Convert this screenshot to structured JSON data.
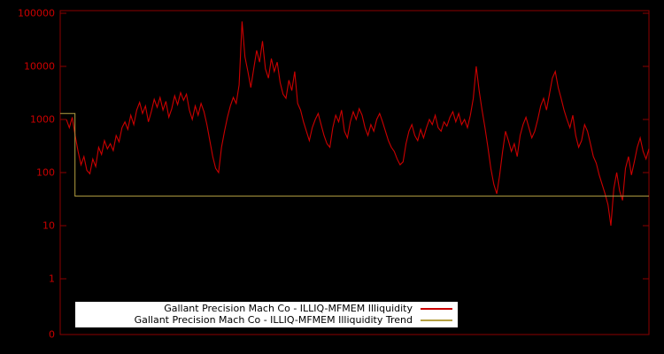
{
  "colors": {
    "background": "#000000",
    "axis": "#8b0000",
    "tick_text": "#cc0000",
    "series_red": "#cc0000",
    "series_trend": "#b5a042",
    "legend_background": "#ffffff",
    "legend_text": "#000000"
  },
  "chart_data": {
    "type": "line",
    "title": "",
    "xlabel": "",
    "ylabel": "",
    "yscale": "log",
    "ylim": [
      1,
      100000
    ],
    "grid": false,
    "legend_position": "bottom-center",
    "ytick_labels": [
      "100000",
      "10000",
      "1000",
      "100",
      "10",
      "1",
      "0"
    ],
    "series": [
      {
        "name": "Gallant Precision Mach Co - ILLIQ-MFMEM Illiquidity",
        "color": "#cc0000",
        "values": [
          1000,
          700,
          1100,
          500,
          250,
          140,
          200,
          110,
          95,
          180,
          130,
          300,
          220,
          400,
          280,
          350,
          260,
          500,
          380,
          700,
          900,
          650,
          1200,
          800,
          1500,
          2100,
          1300,
          1800,
          900,
          1400,
          2400,
          1700,
          2600,
          1500,
          2200,
          1100,
          1600,
          2800,
          1900,
          3200,
          2300,
          3000,
          1500,
          1000,
          1800,
          1200,
          2000,
          1400,
          800,
          400,
          200,
          120,
          100,
          300,
          600,
          1100,
          1800,
          2600,
          2000,
          4500,
          70000,
          15000,
          8000,
          4000,
          9000,
          20000,
          12000,
          30000,
          9000,
          6000,
          14000,
          8000,
          12000,
          5000,
          3000,
          2500,
          5500,
          3500,
          8000,
          2000,
          1500,
          900,
          600,
          400,
          700,
          1000,
          1300,
          800,
          500,
          350,
          300,
          700,
          1200,
          900,
          1500,
          600,
          450,
          900,
          1400,
          1000,
          1600,
          1200,
          700,
          500,
          800,
          600,
          1000,
          1300,
          900,
          600,
          400,
          300,
          250,
          180,
          140,
          160,
          350,
          600,
          800,
          500,
          400,
          650,
          450,
          700,
          1000,
          800,
          1200,
          700,
          600,
          900,
          750,
          1100,
          1400,
          900,
          1300,
          800,
          1000,
          700,
          1200,
          2500,
          10000,
          3500,
          1500,
          700,
          300,
          120,
          60,
          40,
          90,
          250,
          600,
          400,
          250,
          350,
          200,
          500,
          800,
          1100,
          700,
          450,
          600,
          1000,
          1800,
          2500,
          1500,
          3000,
          6000,
          8000,
          4000,
          2500,
          1500,
          1000,
          700,
          1200,
          500,
          300,
          400,
          800,
          600,
          350,
          200,
          150,
          90,
          60,
          40,
          25,
          10,
          50,
          100,
          45,
          30,
          120,
          200,
          90,
          160,
          300,
          450,
          250,
          180,
          280
        ]
      },
      {
        "name": "Gallant Precision Mach Co - ILLIQ-MFMEM Illiquidity Trend",
        "color": "#b5a042",
        "points": [
          [
            0,
            1300
          ],
          [
            5,
            1300
          ],
          [
            5,
            36
          ],
          [
            199,
            36
          ]
        ]
      }
    ]
  },
  "legend": {
    "row1_label": "Gallant Precision Mach Co - ILLIQ-MFMEM Illiquidity",
    "row2_label": "Gallant Precision Mach Co - ILLIQ-MFMEM Illiquidity Trend"
  }
}
